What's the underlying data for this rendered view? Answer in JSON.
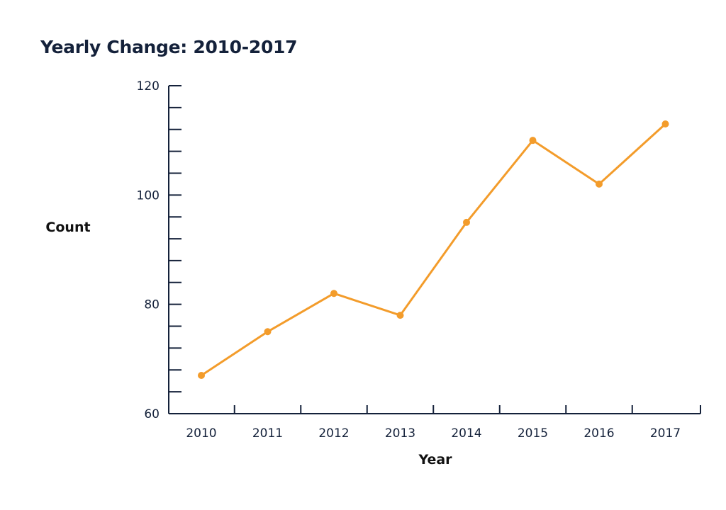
{
  "chart_data": {
    "type": "line",
    "title": "Yearly Change: 2010-2017",
    "xlabel": "Year",
    "ylabel": "Count",
    "categories": [
      "2010",
      "2011",
      "2012",
      "2013",
      "2014",
      "2015",
      "2016",
      "2017"
    ],
    "series": [
      {
        "values": [
          67,
          75,
          82,
          78,
          95,
          110,
          102,
          113
        ]
      }
    ],
    "ylim": [
      60,
      120
    ],
    "yticks": [
      60,
      80,
      100,
      120
    ],
    "yminor_step": 4,
    "grid": false,
    "legend": "none",
    "colors": {
      "line": "#f39c2b",
      "axis": "#14213a",
      "text": "#14213a"
    }
  }
}
